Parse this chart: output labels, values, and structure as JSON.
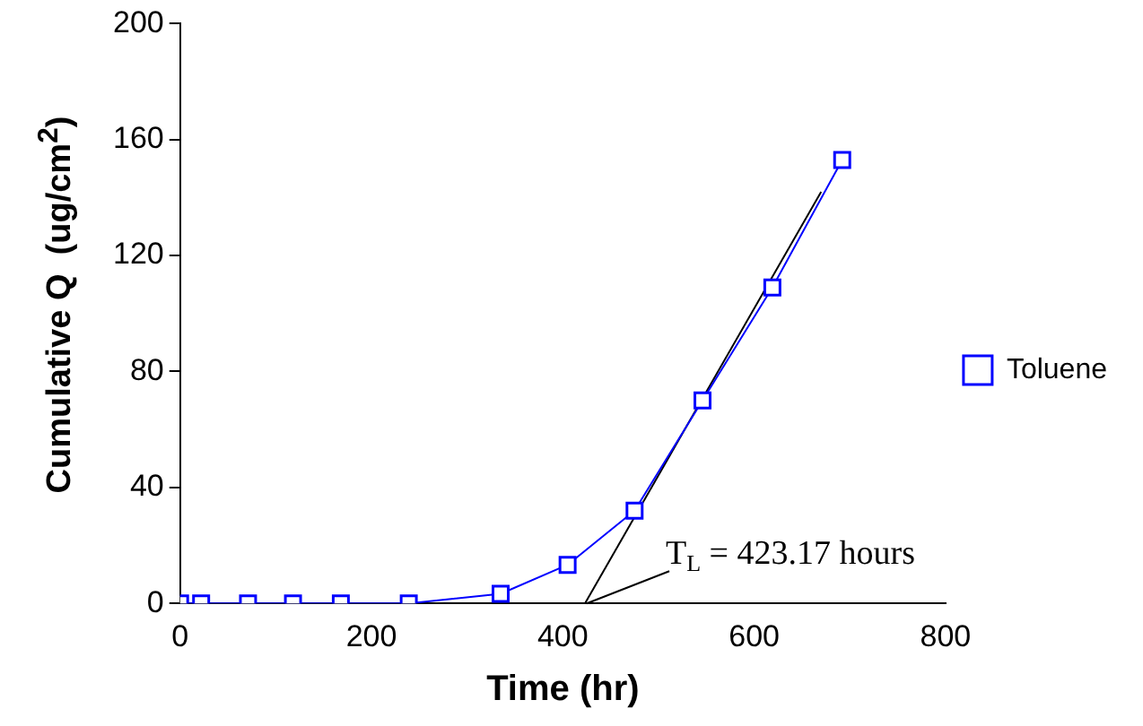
{
  "chart_data": {
    "type": "line",
    "xlabel": "Time (hr)",
    "ylabel": "Cumulative Q  (ug/cm$^{2}$)",
    "xlim": [
      0,
      800
    ],
    "xticks": [
      0,
      200,
      400,
      600,
      800
    ],
    "ylim": [
      0,
      200
    ],
    "yticks": [
      0,
      40,
      80,
      120,
      160,
      200
    ],
    "grid": false,
    "legend": "right",
    "marker": "square",
    "line_style": "solid",
    "series": [
      {
        "name": "Toluene",
        "color": "#0000ff",
        "x": [
          0,
          22,
          71,
          118,
          168,
          239,
          335,
          405,
          475,
          546,
          619,
          692
        ],
        "values": [
          0,
          0,
          0,
          0,
          0,
          0,
          3.3,
          13.3,
          32,
          70,
          109,
          153
        ]
      },
      {
        "color": "#000000",
        "marker": "none",
        "x": [
          423.17,
          670
        ],
        "values": [
          0,
          142
        ]
      }
    ],
    "annotations": [
      {
        "text": "T$_{L}$ = 423.17 hours",
        "x": 423.17,
        "y": 0
      }
    ]
  }
}
